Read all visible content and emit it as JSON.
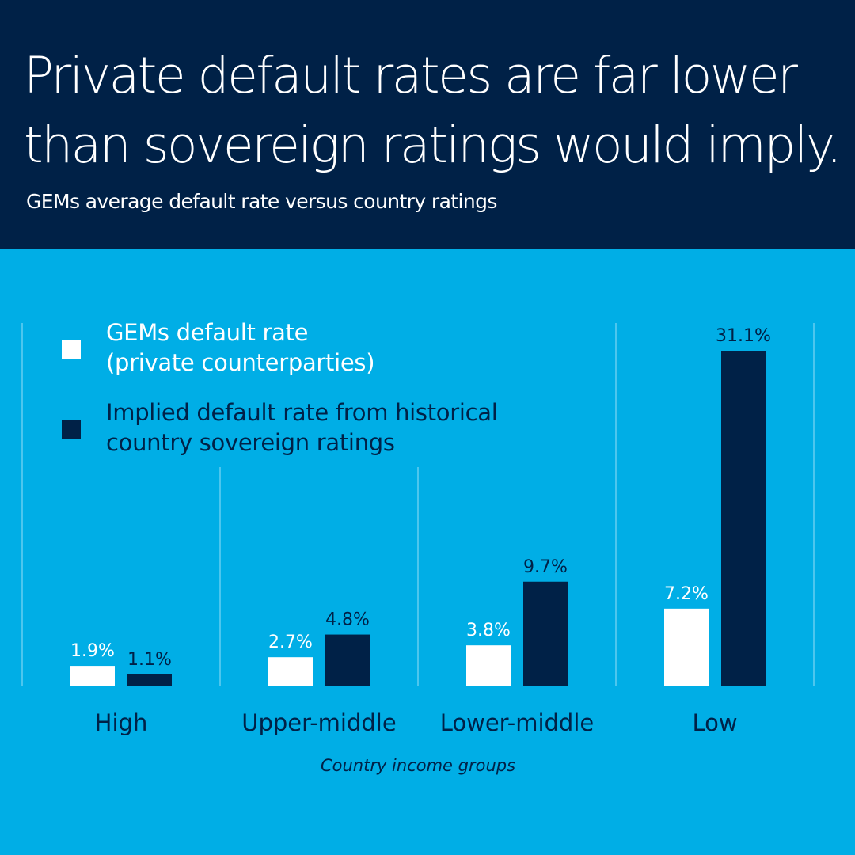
{
  "header": {
    "title": "Private default rates are far lower than sovereign ratings would imply.",
    "subtitle": "GEMs average default rate versus country ratings"
  },
  "colors": {
    "background": "#00aee6",
    "header": "#002147",
    "gems": "#ffffff",
    "implied": "#002147",
    "divider": "#66cdf0"
  },
  "chart_data": {
    "type": "bar",
    "title": "GEMs average default rate versus country ratings",
    "xlabel": "Country income groups",
    "ylabel": "",
    "categories": [
      "High",
      "Upper-middle",
      "Lower-middle",
      "Low"
    ],
    "series": [
      {
        "name": "GEMs default rate (private counterparties)",
        "color": "#ffffff",
        "values": [
          1.9,
          2.7,
          3.8,
          7.2
        ],
        "labels": [
          "1.9%",
          "2.7%",
          "3.8%",
          "7.2%"
        ]
      },
      {
        "name": "Implied default rate from historical country sovereign ratings",
        "color": "#002147",
        "values": [
          1.1,
          4.8,
          9.7,
          31.1
        ],
        "labels": [
          "1.1%",
          "4.8%",
          "9.7%",
          "31.1%"
        ]
      }
    ],
    "legend": {
      "position": "top-left",
      "items": [
        {
          "line1": "GEMs default rate",
          "line2": "(private counterparties)"
        },
        {
          "line1": "Implied default rate from historical",
          "line2": "country sovereign ratings"
        }
      ]
    },
    "grid": false,
    "ylim": [
      0,
      31.1
    ]
  }
}
